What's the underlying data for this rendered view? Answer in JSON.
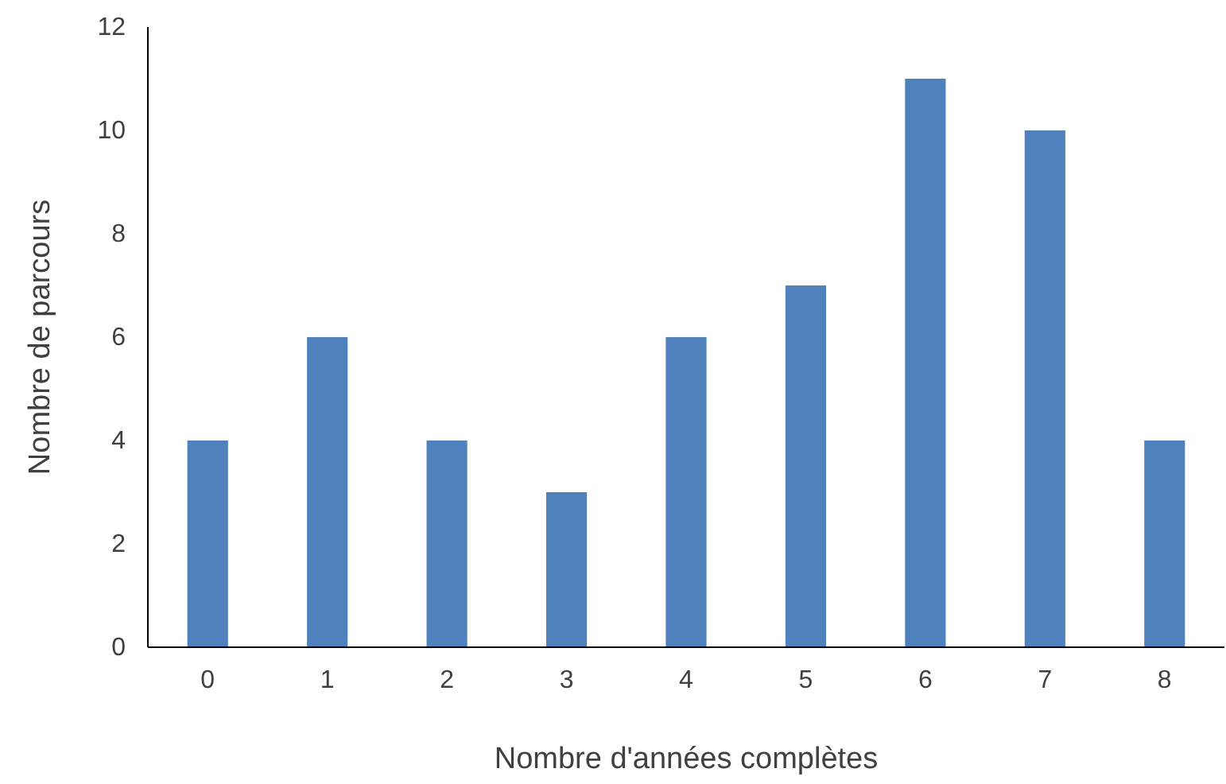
{
  "chart_data": {
    "type": "bar",
    "xlabel": "Nombre d'années complètes",
    "ylabel": "Nombre de parcours",
    "categories": [
      "0",
      "1",
      "2",
      "3",
      "4",
      "5",
      "6",
      "7",
      "8"
    ],
    "values": [
      4,
      6,
      4,
      3,
      6,
      7,
      11,
      10,
      4
    ],
    "color": "#4f81bd",
    "ylim": [
      0,
      12
    ],
    "yticks": [
      0,
      2,
      4,
      6,
      8,
      10,
      12
    ],
    "grid": false
  }
}
